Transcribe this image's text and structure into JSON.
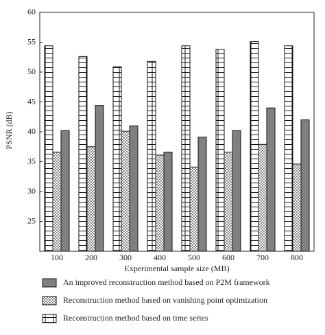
{
  "chart_data": {
    "type": "bar",
    "y_label": "PSNR (dB)",
    "x_label": "Experimental sample size (MB)",
    "categories": [
      "100",
      "200",
      "300",
      "400",
      "500",
      "600",
      "700",
      "800"
    ],
    "ylim": [
      20,
      60
    ],
    "yticks": [
      25,
      30,
      35,
      40,
      45,
      50,
      55,
      60
    ],
    "legend": "bottom",
    "series": [
      {
        "name": "An improved reconstruction method based on P2M framework",
        "color": "#808080",
        "pattern": "solid",
        "values": [
          40.2,
          44.4,
          41.0,
          36.6,
          39.1,
          40.2,
          44.0,
          42.0
        ]
      },
      {
        "name": "Reconstruction method based on vanishing point optimization",
        "color": "#ffffff",
        "pattern": "dots",
        "values": [
          36.6,
          37.5,
          40.1,
          36.1,
          34.1,
          36.6,
          37.9,
          34.6
        ]
      },
      {
        "name": "Reconstruction method based on time series",
        "color": "#ffffff",
        "pattern": "grid",
        "values": [
          54.4,
          52.6,
          50.9,
          51.8,
          54.4,
          53.8,
          55.1,
          54.4
        ]
      }
    ],
    "bar_order": [
      2,
      1,
      0
    ]
  }
}
